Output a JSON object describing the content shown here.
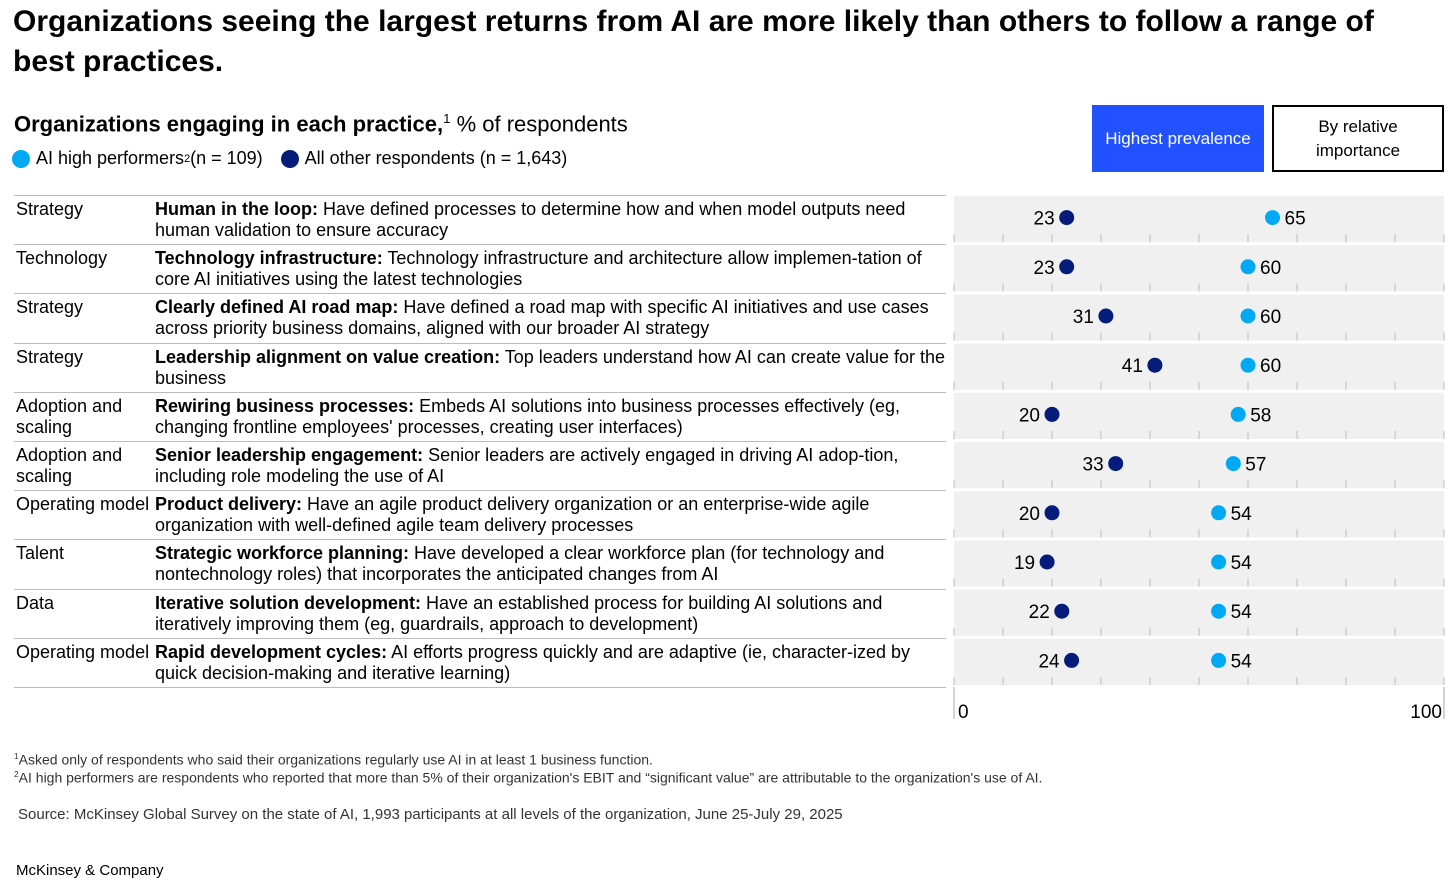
{
  "title": "Organizations seeing the largest returns from AI are more likely than others to follow a range of best practices.",
  "subtitle": {
    "bold": "Organizations engaging in each practice,",
    "sup": "1",
    "rest": " % of respondents"
  },
  "legend": {
    "high": "AI high performers",
    "high_sup": "2",
    "high_n": " (n = 109)",
    "other": "All other respondents (n = 1,643)"
  },
  "buttons": {
    "highest": "Highest prevalence",
    "relative": "By relative importance"
  },
  "colors": {
    "high": "#00a9f4",
    "other": "#051c7a",
    "button": "#2251ff"
  },
  "rows": [
    {
      "category": "Strategy",
      "practice": "Human in the loop:",
      "text": " Have defined processes to determine how and when model outputs need human validation to ensure accuracy"
    },
    {
      "category": "Technology",
      "practice": "Technology infrastructure:",
      "text": " Technology infrastructure and architecture allow implemen-tation of core AI initiatives using the latest technologies"
    },
    {
      "category": "Strategy",
      "practice": "Clearly defined AI road map:",
      "text": " Have defined a road map with specific AI initiatives and use cases across priority business domains, aligned with our broader AI strategy"
    },
    {
      "category": "Strategy",
      "practice": "Leadership alignment on value creation:",
      "text": " Top leaders understand how AI can create value for the business"
    },
    {
      "category": "Adoption and scaling",
      "practice": "Rewiring business processes:",
      "text": " Embeds AI solutions into business processes effectively (eg, changing frontline employees' processes, creating user interfaces)"
    },
    {
      "category": "Adoption and scaling",
      "practice": "Senior leadership engagement:",
      "text": " Senior leaders are actively engaged in driving AI adop-tion, including role modeling the use of AI"
    },
    {
      "category": "Operating model",
      "practice": "Product delivery:",
      "text": " Have an agile product delivery organization or an enterprise-wide agile organization with well-defined agile team delivery processes"
    },
    {
      "category": "Talent",
      "practice": "Strategic workforce planning:",
      "text": " Have developed a clear workforce plan (for technology and nontechnology roles) that incorporates the anticipated changes from AI"
    },
    {
      "category": "Data",
      "practice": "Iterative solution development:",
      "text": " Have an established process for building AI solutions and iteratively improving them (eg, guardrails, approach to development)"
    },
    {
      "category": "Operating model",
      "practice": "Rapid development cycles:",
      "text": " AI efforts progress quickly and are adaptive (ie, character-ized by quick decision-making and iterative learning)"
    }
  ],
  "chart_data": {
    "type": "scatter",
    "categories": [
      "Human in the loop",
      "Technology infrastructure",
      "Clearly defined AI road map",
      "Leadership alignment on value creation",
      "Rewiring business processes",
      "Senior leadership engagement",
      "Product delivery",
      "Strategic workforce planning",
      "Iterative solution development",
      "Rapid development cycles"
    ],
    "series": [
      {
        "name": "AI high performers",
        "values": [
          65,
          60,
          60,
          60,
          58,
          57,
          54,
          54,
          54,
          54
        ]
      },
      {
        "name": "All other respondents",
        "values": [
          23,
          23,
          31,
          41,
          20,
          33,
          20,
          19,
          22,
          24
        ]
      }
    ],
    "xlim": [
      0,
      100
    ],
    "xticks": [
      "0",
      "100"
    ]
  },
  "footnotes": {
    "f1": "Asked only of respondents who said their organizations regularly use AI in at least 1 business function.",
    "f2": "AI high performers are respondents who reported that more than 5% of their organization's EBIT and “significant value” are attributable to the organization's use of AI.",
    "source": "Source: McKinsey Global Survey on the state of AI, 1,993 participants at all levels of the organization, June 25-July 29, 2025"
  },
  "brand": "McKinsey & Company"
}
